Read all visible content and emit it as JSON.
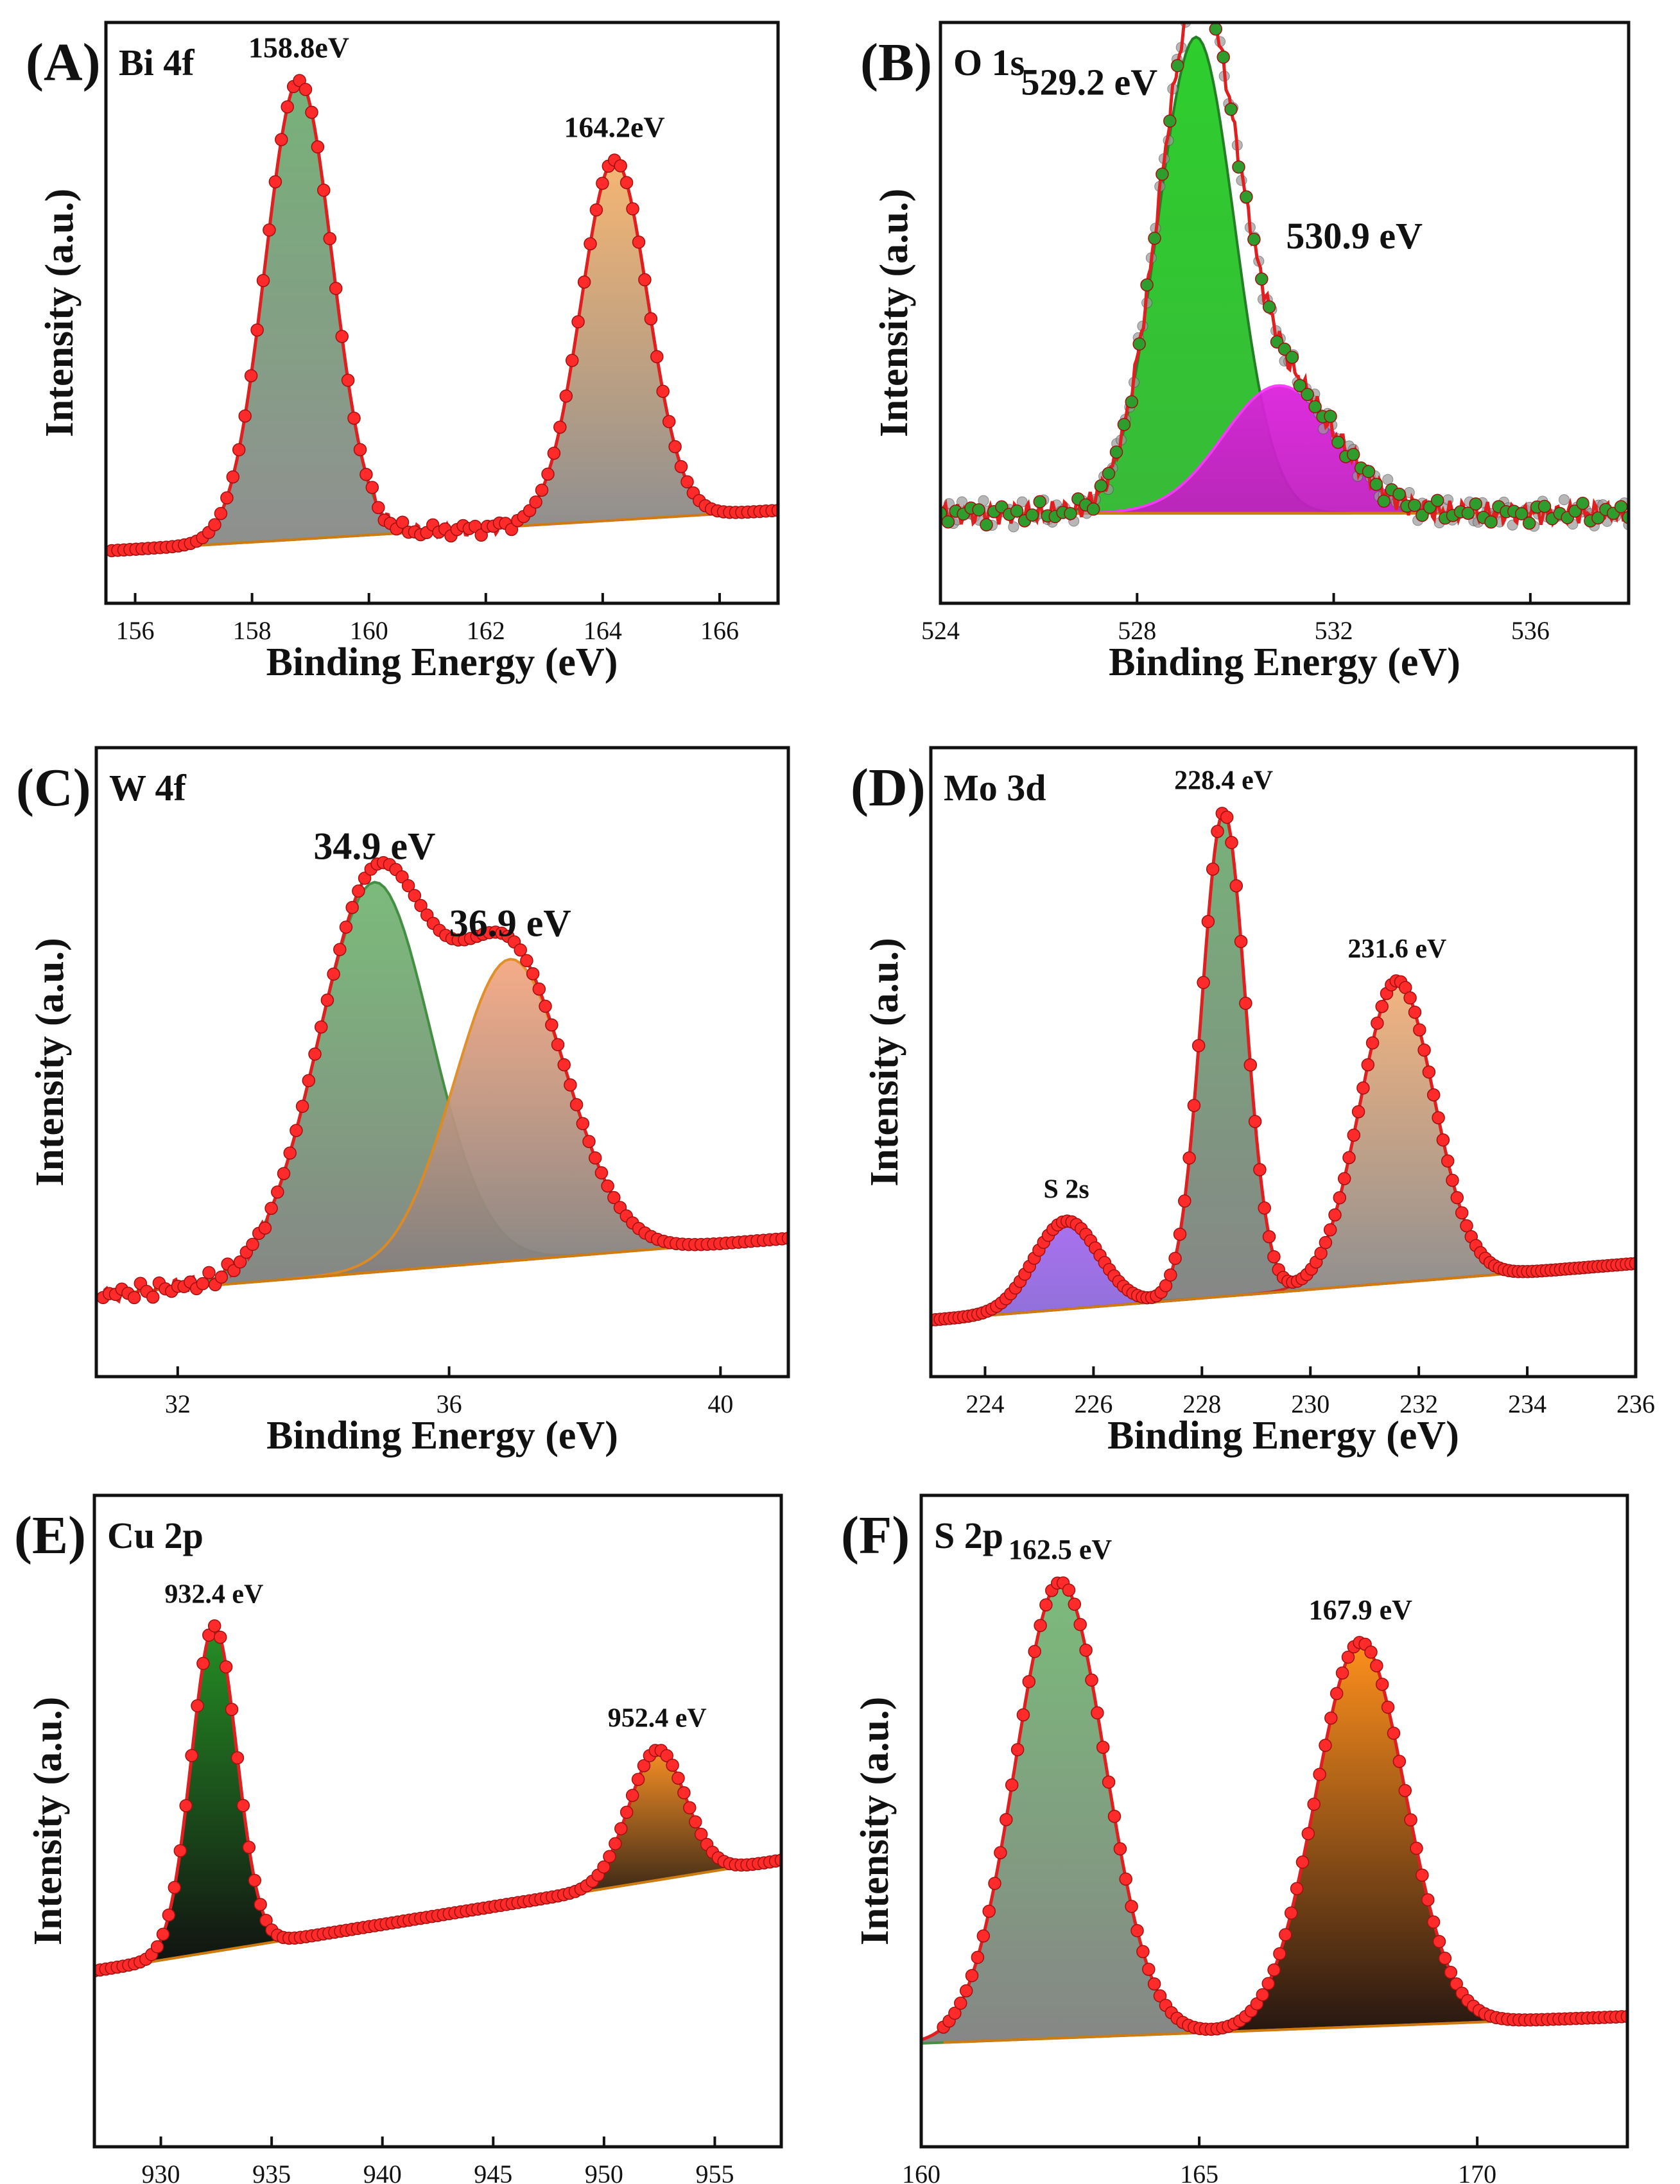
{
  "figure": {
    "xlabel": "Binding Energy (eV)",
    "ylabel": "Intensity (a.u.)"
  },
  "chart_data": [
    {
      "type": "line",
      "panel": "(A)",
      "title": "Bi 4f",
      "xlim": [
        155.5,
        167
      ],
      "xticks": [
        156,
        158,
        160,
        162,
        164,
        166
      ],
      "xlabel": "Binding Energy (eV)",
      "ylabel": "Intensity (a.u.)",
      "ylim": [
        0,
        1
      ],
      "baseline": [
        [
          155.5,
          0.09
        ],
        [
          167,
          0.16
        ]
      ],
      "dot_color": "#ff2a2a",
      "dot_range": [
        155.6,
        167
      ],
      "dot_count": 110,
      "scatter": null,
      "scatter_color": null,
      "noise": {
        "amp": 0.012,
        "start": 160.0,
        "end": 162.5
      },
      "peaks": [
        {
          "center": 158.8,
          "height": 0.79,
          "fwhm": 1.35,
          "top": "#6fae72",
          "bottom": "#8a8a8a",
          "edge": "#3c8a3c",
          "label": "158.8eV"
        },
        {
          "center": 164.2,
          "height": 0.62,
          "fwhm": 1.35,
          "top": "#f6b26b",
          "bottom": "#8a8a8a",
          "edge": "#e060e0",
          "label": "164.2eV"
        }
      ]
    },
    {
      "type": "line",
      "panel": "(B)",
      "title": "O 1s",
      "xlim": [
        524,
        538
      ],
      "xticks": [
        524,
        528,
        532,
        536
      ],
      "xlabel": "Binding Energy (eV)",
      "ylabel": "Intensity (a.u.)",
      "ylim": [
        0,
        1
      ],
      "baseline": [
        [
          524,
          0.155
        ],
        [
          538,
          0.155
        ]
      ],
      "dot_color": "#2e9d2e",
      "dot_range": [
        524,
        538
      ],
      "dot_count": 90,
      "scatter": [
        524,
        538
      ],
      "scatter_color": "#9a9a9a",
      "noise": {
        "amp": 0.02,
        "start": 524,
        "end": 538
      },
      "peaks": [
        {
          "center": 529.2,
          "height": 0.82,
          "fwhm": 1.85,
          "top": "#22cc22",
          "bottom": "#2fb82f",
          "edge": "#1a7a1a",
          "label": "529.2 eV"
        },
        {
          "center": 530.9,
          "height": 0.22,
          "fwhm": 2.7,
          "top": "#dd22dd",
          "bottom": "#c020c0",
          "edge": "#ff33ff",
          "label": "530.9 eV"
        }
      ]
    },
    {
      "type": "line",
      "panel": "(C)",
      "title": "W 4f",
      "xlim": [
        30.8,
        41
      ],
      "xticks": [
        32,
        36,
        40
      ],
      "xlabel": "Binding Energy (eV)",
      "ylabel": "Intensity (a.u.)",
      "ylim": [
        0,
        1
      ],
      "baseline": [
        [
          30.8,
          0.13
        ],
        [
          41,
          0.22
        ]
      ],
      "dot_color": "#ff2a2a",
      "dot_range": [
        30.9,
        41
      ],
      "dot_count": 110,
      "scatter": null,
      "scatter_color": null,
      "noise": {
        "amp": 0.014,
        "start": 30.9,
        "end": 33.3
      },
      "peaks": [
        {
          "center": 34.9,
          "height": 0.62,
          "fwhm": 1.95,
          "top": "#74b874",
          "bottom": "#808080",
          "edge": "#3a8a3a",
          "label": "34.9 eV"
        },
        {
          "center": 36.9,
          "height": 0.48,
          "fwhm": 1.95,
          "top": "#f5a882",
          "bottom": "#808080",
          "edge": "#e08a20",
          "label": "36.9 eV"
        }
      ]
    },
    {
      "type": "line",
      "panel": "(D)",
      "title": "Mo 3d",
      "xlim": [
        223,
        236
      ],
      "xticks": [
        224,
        226,
        228,
        230,
        232,
        234,
        236
      ],
      "xlabel": "Binding Energy (eV)",
      "ylabel": "Intensity (a.u.)",
      "ylim": [
        0,
        1
      ],
      "baseline": [
        [
          223,
          0.09
        ],
        [
          236,
          0.18
        ]
      ],
      "dot_color": "#ff2a2a",
      "dot_range": [
        223,
        236
      ],
      "dot_count": 150,
      "scatter": null,
      "scatter_color": null,
      "noise": null,
      "peaks": [
        {
          "center": 225.5,
          "height": 0.14,
          "fwhm": 1.4,
          "top": "#a66aee",
          "bottom": "#8a6ad8",
          "edge": "#2a2ab0",
          "label": "S 2s"
        },
        {
          "center": 228.4,
          "height": 0.77,
          "fwhm": 0.95,
          "top": "#6fae72",
          "bottom": "#808080",
          "edge": "#2e7a2e",
          "label": "228.4 eV"
        },
        {
          "center": 231.6,
          "height": 0.48,
          "fwhm": 1.6,
          "top": "#f3b07a",
          "bottom": "#8a8a8a",
          "edge": "#d02020",
          "label": "231.6 eV"
        }
      ]
    },
    {
      "type": "line",
      "panel": "(E)",
      "title": "Cu 2p",
      "xlim": [
        927,
        958
      ],
      "xticks": [
        930,
        935,
        940,
        945,
        950,
        955
      ],
      "xlabel": "Binding Energy (eV)",
      "ylabel": "Intensity (a.u.)",
      "ylim": [
        0,
        1
      ],
      "baseline": [
        [
          927,
          0.27
        ],
        [
          958,
          0.44
        ]
      ],
      "dot_color": "#ff2a2a",
      "dot_range": [
        927,
        958
      ],
      "dot_count": 120,
      "scatter": null,
      "scatter_color": null,
      "noise": null,
      "peaks": [
        {
          "center": 932.4,
          "height": 0.5,
          "fwhm": 2.4,
          "top": "#1a8a1a",
          "bottom": "#050505",
          "edge": "#0a5a0a",
          "label": "932.4 eV"
        },
        {
          "center": 952.4,
          "height": 0.2,
          "fwhm": 3.0,
          "top": "#f78a1a",
          "bottom": "#2a1a0a",
          "edge": "#2a8a2a",
          "label": "952.4 eV"
        }
      ]
    },
    {
      "type": "line",
      "panel": "(F)",
      "title": "S 2p",
      "xlim": [
        160,
        172.7
      ],
      "xticks": [
        160,
        165,
        170
      ],
      "xlabel": "Binding Energy (eV)",
      "ylabel": "Intensity (a.u.)",
      "ylim": [
        0,
        1
      ],
      "baseline": [
        [
          160.4,
          0.16
        ],
        [
          172.7,
          0.2
        ]
      ],
      "dot_color": "#ff2a2a",
      "dot_range": [
        160.4,
        172.7
      ],
      "dot_count": 120,
      "scatter": null,
      "scatter_color": null,
      "noise": null,
      "peaks": [
        {
          "center": 162.5,
          "height": 0.7,
          "fwhm": 1.9,
          "top": "#74b874",
          "bottom": "#808080",
          "edge": "#3a8a3a",
          "label": "162.5 eV"
        },
        {
          "center": 167.9,
          "height": 0.59,
          "fwhm": 1.9,
          "top": "#ff8a10",
          "bottom": "#1a0a05",
          "edge": "#e07a10",
          "label": "167.9 eV"
        }
      ]
    }
  ]
}
